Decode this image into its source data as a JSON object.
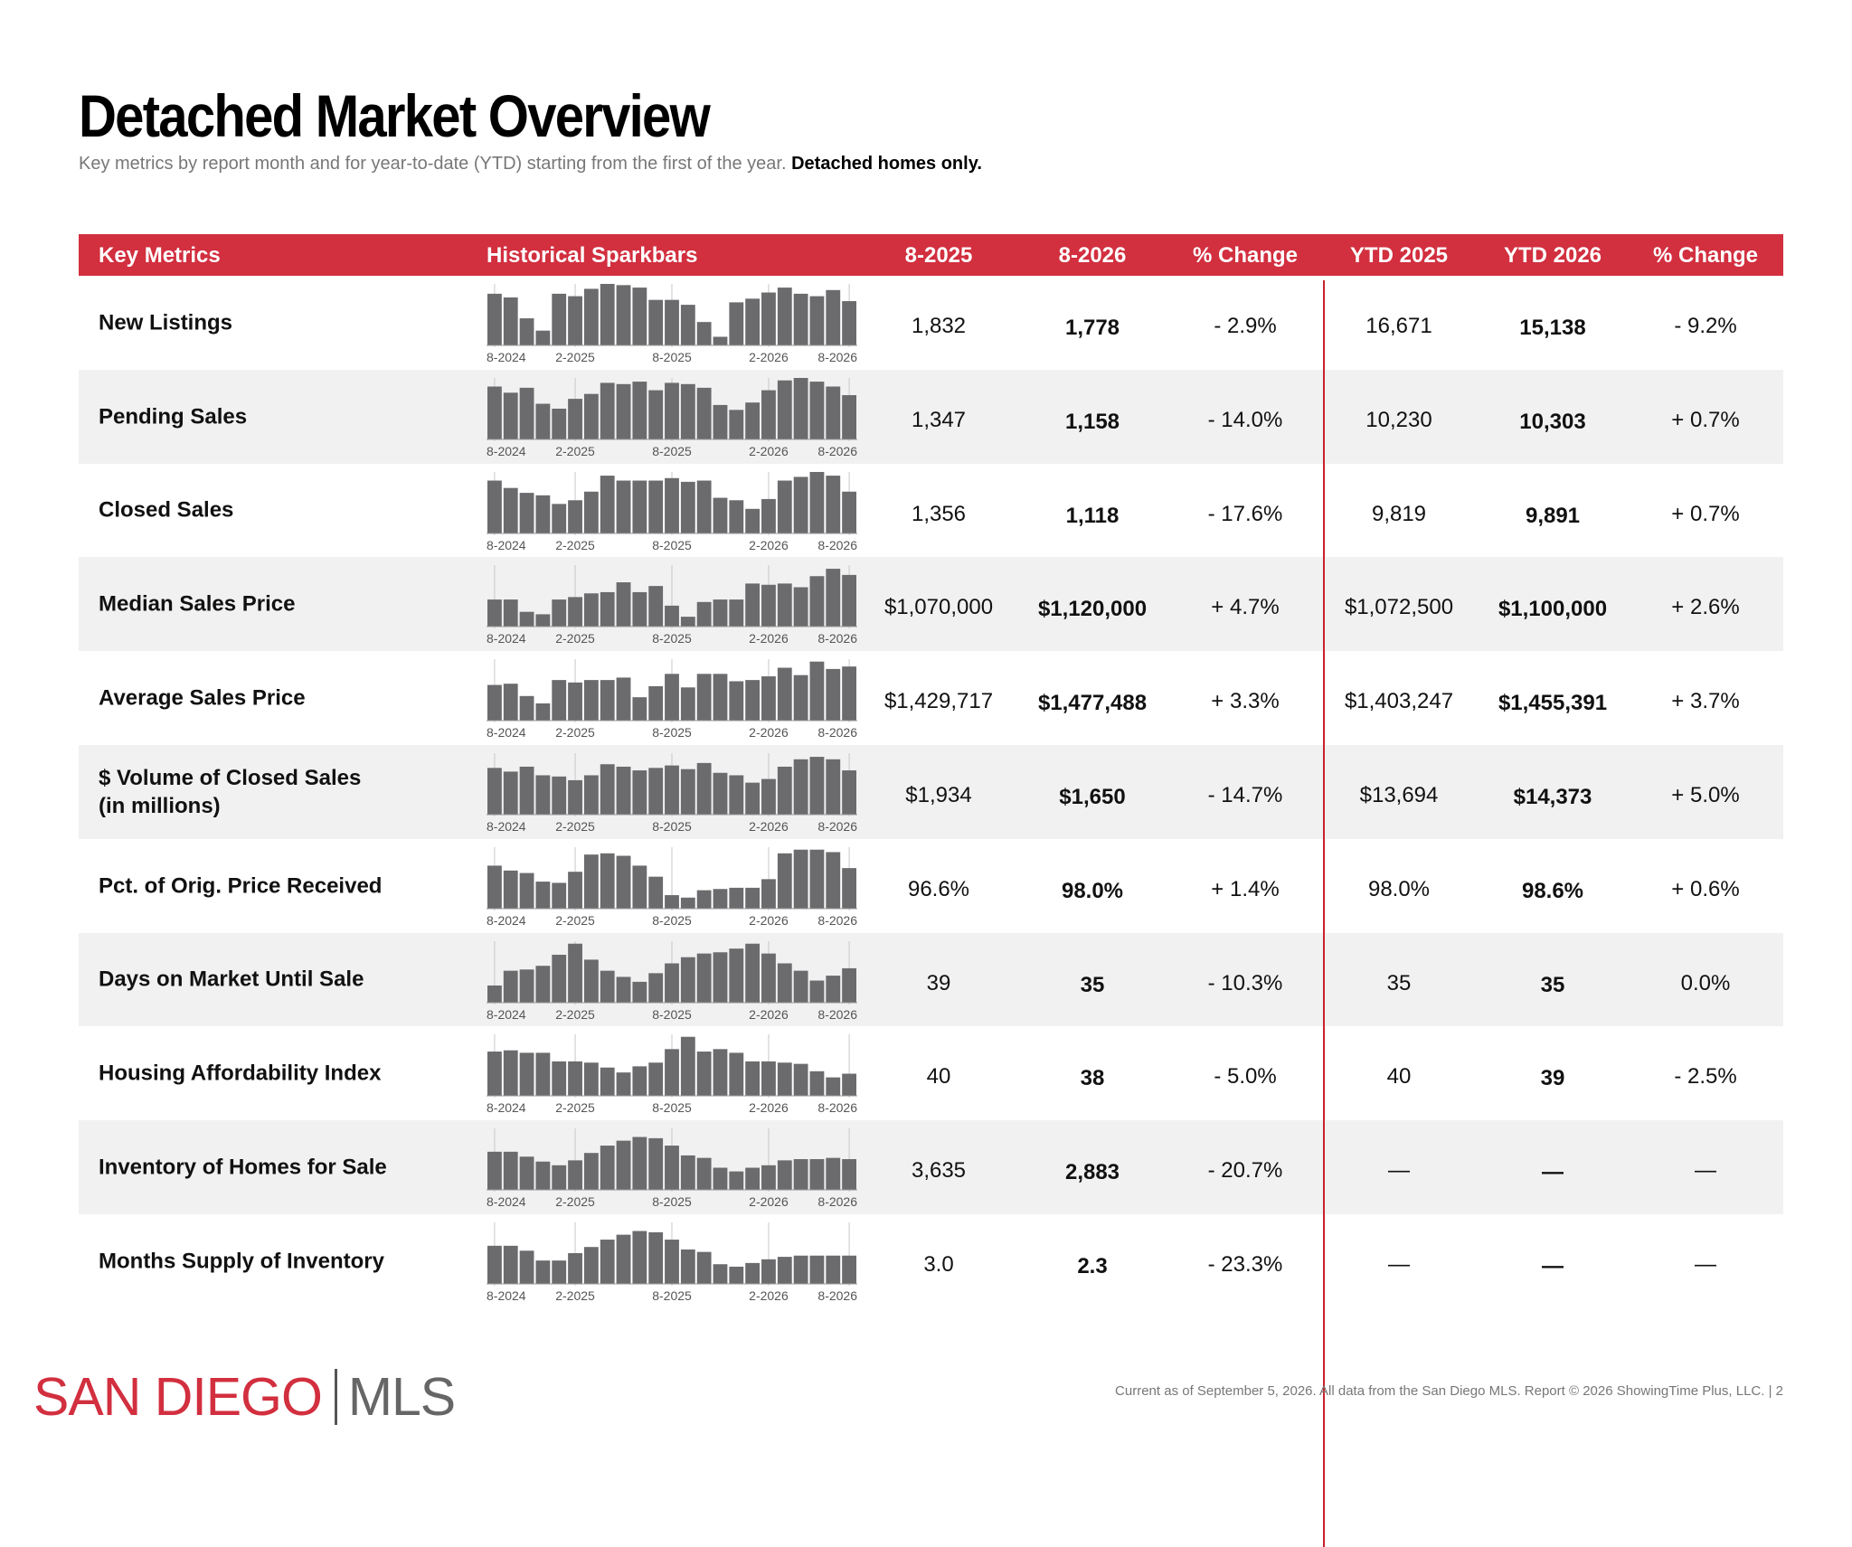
{
  "page": {
    "title": "Detached Market Overview",
    "subtitle": "Key metrics by report month and for year-to-date (YTD) starting from the first of the year.",
    "subtitle_bold": "Detached homes only."
  },
  "table": {
    "headers": [
      "Key Metrics",
      "Historical Sparkbars",
      "8-2025",
      "8-2026",
      "% Change",
      "YTD 2025",
      "YTD 2026",
      "% Change"
    ],
    "spark_axis_labels": [
      "8-2024",
      "2-2025",
      "8-2025",
      "2-2026",
      "8-2026"
    ],
    "rows": [
      {
        "metric": "New Listings",
        "m2025": "1,832",
        "m2026": "1,778",
        "chg": "- 2.9%",
        "ytd2025": "16,671",
        "ytd2026": "15,138",
        "ytdchg": "- 9.2%",
        "spark": [
          0.84,
          0.78,
          0.44,
          0.24,
          0.84,
          0.8,
          0.92,
          1.0,
          0.98,
          0.94,
          0.74,
          0.74,
          0.66,
          0.38,
          0.14,
          0.7,
          0.76,
          0.86,
          0.94,
          0.84,
          0.8,
          0.9,
          0.72
        ]
      },
      {
        "metric": "Pending Sales",
        "m2025": "1,347",
        "m2026": "1,158",
        "chg": "- 14.0%",
        "ytd2025": "10,230",
        "ytd2026": "10,303",
        "ytdchg": "+ 0.7%",
        "spark": [
          0.86,
          0.76,
          0.84,
          0.58,
          0.5,
          0.66,
          0.74,
          0.92,
          0.9,
          0.94,
          0.8,
          0.92,
          0.9,
          0.84,
          0.56,
          0.48,
          0.6,
          0.8,
          0.96,
          1.0,
          0.94,
          0.86,
          0.72
        ]
      },
      {
        "metric": "Closed Sales",
        "m2025": "1,356",
        "m2026": "1,118",
        "chg": "- 17.6%",
        "ytd2025": "9,819",
        "ytd2026": "9,891",
        "ytdchg": "+ 0.7%",
        "spark": [
          0.86,
          0.74,
          0.66,
          0.62,
          0.48,
          0.54,
          0.68,
          0.94,
          0.86,
          0.86,
          0.86,
          0.9,
          0.84,
          0.86,
          0.58,
          0.54,
          0.4,
          0.56,
          0.86,
          0.92,
          1.0,
          0.94,
          0.68
        ]
      },
      {
        "metric": "Median Sales Price",
        "m2025": "$1,070,000",
        "m2026": "$1,120,000",
        "chg": "+ 4.7%",
        "ytd2025": "$1,072,500",
        "ytd2026": "$1,100,000",
        "ytdchg": "+ 2.6%",
        "spark": [
          0.44,
          0.44,
          0.24,
          0.2,
          0.44,
          0.48,
          0.54,
          0.56,
          0.72,
          0.56,
          0.66,
          0.34,
          0.16,
          0.4,
          0.44,
          0.44,
          0.7,
          0.68,
          0.7,
          0.64,
          0.82,
          0.94,
          0.84
        ]
      },
      {
        "metric": "Average Sales Price",
        "m2025": "$1,429,717",
        "m2026": "$1,477,488",
        "chg": "+ 3.3%",
        "ytd2025": "$1,403,247",
        "ytd2026": "$1,455,391",
        "ytdchg": "+ 3.7%",
        "spark": [
          0.58,
          0.6,
          0.4,
          0.28,
          0.66,
          0.62,
          0.66,
          0.66,
          0.7,
          0.38,
          0.56,
          0.76,
          0.54,
          0.76,
          0.76,
          0.64,
          0.66,
          0.72,
          0.86,
          0.74,
          0.96,
          0.84,
          0.88
        ]
      },
      {
        "metric": "$ Volume of Closed Sales\n(in millions)",
        "m2025": "$1,934",
        "m2026": "$1,650",
        "chg": "- 14.7%",
        "ytd2025": "$13,694",
        "ytd2026": "$14,373",
        "ytdchg": "+ 5.0%",
        "spark": [
          0.76,
          0.7,
          0.78,
          0.64,
          0.62,
          0.56,
          0.64,
          0.82,
          0.78,
          0.72,
          0.76,
          0.8,
          0.74,
          0.84,
          0.68,
          0.64,
          0.52,
          0.58,
          0.78,
          0.9,
          0.94,
          0.9,
          0.72
        ]
      },
      {
        "metric": "Pct. of Orig. Price Received",
        "m2025": "96.6%",
        "m2026": "98.0%",
        "chg": "+ 1.4%",
        "ytd2025": "98.0%",
        "ytd2026": "98.6%",
        "ytdchg": "+ 0.6%",
        "spark": [
          0.7,
          0.62,
          0.58,
          0.44,
          0.42,
          0.6,
          0.88,
          0.9,
          0.86,
          0.7,
          0.52,
          0.22,
          0.18,
          0.3,
          0.32,
          0.34,
          0.34,
          0.48,
          0.9,
          0.96,
          0.96,
          0.92,
          0.66
        ]
      },
      {
        "metric": "Days on Market Until Sale",
        "m2025": "39",
        "m2026": "35",
        "chg": "- 10.3%",
        "ytd2025": "35",
        "ytd2026": "35",
        "ytdchg": "0.0%",
        "spark": [
          0.28,
          0.52,
          0.54,
          0.6,
          0.78,
          0.96,
          0.7,
          0.52,
          0.42,
          0.34,
          0.48,
          0.64,
          0.74,
          0.8,
          0.82,
          0.88,
          0.96,
          0.8,
          0.64,
          0.52,
          0.36,
          0.44,
          0.56
        ]
      },
      {
        "metric": "Housing Affordability Index",
        "m2025": "40",
        "m2026": "38",
        "chg": "- 5.0%",
        "ytd2025": "40",
        "ytd2026": "39",
        "ytdchg": "- 2.5%",
        "spark": [
          0.72,
          0.74,
          0.7,
          0.7,
          0.56,
          0.56,
          0.54,
          0.46,
          0.38,
          0.48,
          0.54,
          0.76,
          0.96,
          0.72,
          0.76,
          0.7,
          0.56,
          0.56,
          0.54,
          0.52,
          0.4,
          0.3,
          0.36
        ]
      },
      {
        "metric": "Inventory of Homes for Sale",
        "m2025": "3,635",
        "m2026": "2,883",
        "chg": "- 20.7%",
        "ytd2025": "—",
        "ytd2026": "—",
        "ytdchg": "—",
        "spark": [
          0.62,
          0.62,
          0.54,
          0.46,
          0.4,
          0.48,
          0.6,
          0.72,
          0.8,
          0.86,
          0.84,
          0.72,
          0.56,
          0.52,
          0.36,
          0.3,
          0.36,
          0.4,
          0.48,
          0.5,
          0.5,
          0.52,
          0.5
        ]
      },
      {
        "metric": "Months Supply of Inventory",
        "m2025": "3.0",
        "m2026": "2.3",
        "chg": "- 23.3%",
        "ytd2025": "—",
        "ytd2026": "—",
        "ytdchg": "—",
        "spark": [
          0.62,
          0.62,
          0.54,
          0.38,
          0.38,
          0.5,
          0.6,
          0.72,
          0.8,
          0.86,
          0.84,
          0.72,
          0.56,
          0.52,
          0.32,
          0.28,
          0.34,
          0.4,
          0.44,
          0.46,
          0.46,
          0.46,
          0.46
        ]
      }
    ]
  },
  "footer": {
    "logo_left": "SAN DIEGO",
    "logo_right": "MLS",
    "note": "Current as of September 5, 2026. All data from the San Diego MLS. Report © 2026 ShowingTime Plus, LLC.  |  2"
  },
  "colors": {
    "accent": "#d22f3f",
    "bar": "#6b6b6e",
    "row_alt": "#f1f1f1"
  }
}
